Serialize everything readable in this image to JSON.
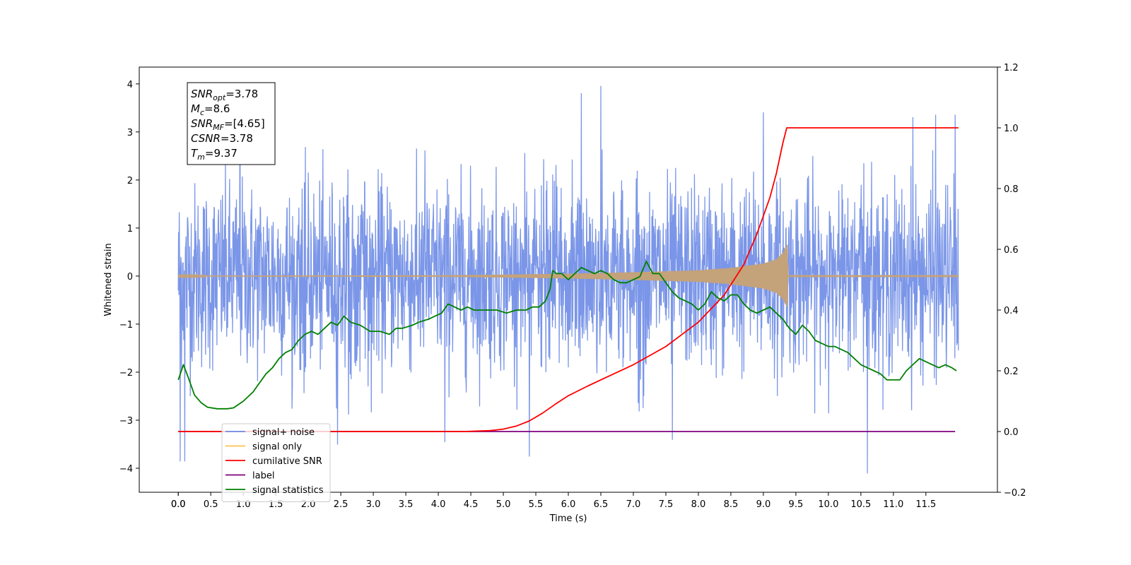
{
  "chart_data": {
    "type": "line",
    "xlabel": "Time (s)",
    "ylabel_left": "Whitened strain",
    "ylabel_right": "",
    "xlim": [
      -0.6,
      12.6
    ],
    "ylim_left": [
      -4.5,
      4.35
    ],
    "ylim_right": [
      -0.2,
      1.2
    ],
    "x_ticks": [
      "0.0",
      "0.0",
      "0.5",
      "1.0",
      "1.5",
      "2.0",
      "2.5",
      "3.0",
      "3.5",
      "4.0",
      "4.5",
      "5.0",
      "5.5",
      "6.0",
      "6.5",
      "7.0",
      "7.5",
      "8.0",
      "8.5",
      "9.0",
      "9.5",
      "10.0",
      "10.5",
      "11.0",
      "11.5"
    ],
    "x_tick_values": [
      0.0,
      0.0,
      0.5,
      1.0,
      1.5,
      2.0,
      2.5,
      3.0,
      3.5,
      4.0,
      4.5,
      5.0,
      5.5,
      6.0,
      6.5,
      7.0,
      7.5,
      8.0,
      8.5,
      9.0,
      9.5,
      10.0,
      10.5,
      11.0,
      11.5
    ],
    "y_ticks_left": [
      4,
      3,
      2,
      1,
      0,
      -1,
      -2,
      -3,
      -4
    ],
    "y_ticks_left_labels": [
      "4",
      "3",
      "2",
      "1",
      "0",
      "−1",
      "−2",
      "−3",
      "−4"
    ],
    "y_ticks_right": [
      1.2,
      1.0,
      0.8,
      0.6,
      0.4,
      0.2,
      0.0,
      -0.2
    ],
    "y_ticks_right_labels": [
      "1.2",
      "1.0",
      "0.8",
      "0.6",
      "0.4",
      "0.2",
      "0.0",
      "−0.2"
    ],
    "series": [
      {
        "name": "signal+ noise",
        "color": "#7b96e8",
        "axis": "left",
        "x_range": [
          0.0,
          12.0
        ],
        "std": 0.95,
        "peaks": [
          [
            0.03,
            -3.85
          ],
          [
            0.1,
            -3.85
          ],
          [
            0.95,
            3.8
          ],
          [
            2.45,
            -3.5
          ],
          [
            4.1,
            -3.45
          ],
          [
            5.4,
            3.7
          ],
          [
            5.4,
            -3.75
          ],
          [
            6.2,
            3.8
          ],
          [
            6.5,
            3.95
          ],
          [
            7.6,
            -3.4
          ],
          [
            9.0,
            3.4
          ],
          [
            10.6,
            -4.1
          ],
          [
            11.3,
            3.3
          ],
          [
            11.65,
            3.35
          ],
          [
            11.95,
            3.35
          ]
        ]
      },
      {
        "name": "signal only",
        "color": "#c4a27a",
        "legend_color": "#ffc04d",
        "axis": "left",
        "envelope": [
          [
            0.0,
            0.01
          ],
          [
            4.0,
            0.015
          ],
          [
            5.0,
            0.03
          ],
          [
            6.0,
            0.05
          ],
          [
            7.0,
            0.08
          ],
          [
            8.0,
            0.12
          ],
          [
            8.5,
            0.17
          ],
          [
            9.0,
            0.26
          ],
          [
            9.2,
            0.35
          ],
          [
            9.3,
            0.48
          ],
          [
            9.37,
            0.66
          ],
          [
            9.38,
            0.02
          ],
          [
            12.0,
            0.02
          ]
        ]
      },
      {
        "name": "cumilative SNR",
        "color": "#ff0000",
        "axis": "right",
        "points": [
          [
            0.0,
            0.0
          ],
          [
            4.4,
            0.0
          ],
          [
            4.8,
            0.003
          ],
          [
            5.0,
            0.008
          ],
          [
            5.2,
            0.018
          ],
          [
            5.4,
            0.035
          ],
          [
            5.6,
            0.06
          ],
          [
            5.8,
            0.09
          ],
          [
            6.0,
            0.118
          ],
          [
            6.3,
            0.15
          ],
          [
            6.6,
            0.18
          ],
          [
            7.0,
            0.22
          ],
          [
            7.5,
            0.28
          ],
          [
            8.0,
            0.36
          ],
          [
            8.4,
            0.45
          ],
          [
            8.7,
            0.55
          ],
          [
            8.9,
            0.65
          ],
          [
            9.1,
            0.77
          ],
          [
            9.2,
            0.85
          ],
          [
            9.3,
            0.95
          ],
          [
            9.36,
            1.0
          ],
          [
            12.0,
            1.0
          ]
        ]
      },
      {
        "name": "label",
        "color": "#7f007f",
        "axis": "right",
        "points": [
          [
            0.0,
            0.0
          ],
          [
            11.95,
            0.0
          ]
        ]
      },
      {
        "name": "signal statistics",
        "color": "#008000",
        "axis": "right",
        "points": [
          [
            0.0,
            0.17
          ],
          [
            0.08,
            0.22
          ],
          [
            0.15,
            0.18
          ],
          [
            0.25,
            0.12
          ],
          [
            0.35,
            0.095
          ],
          [
            0.45,
            0.08
          ],
          [
            0.6,
            0.075
          ],
          [
            0.75,
            0.075
          ],
          [
            0.85,
            0.078
          ],
          [
            1.0,
            0.1
          ],
          [
            1.15,
            0.13
          ],
          [
            1.25,
            0.16
          ],
          [
            1.35,
            0.19
          ],
          [
            1.45,
            0.21
          ],
          [
            1.55,
            0.24
          ],
          [
            1.65,
            0.26
          ],
          [
            1.75,
            0.27
          ],
          [
            1.85,
            0.3
          ],
          [
            1.95,
            0.32
          ],
          [
            2.05,
            0.33
          ],
          [
            2.15,
            0.32
          ],
          [
            2.25,
            0.34
          ],
          [
            2.35,
            0.36
          ],
          [
            2.45,
            0.35
          ],
          [
            2.55,
            0.38
          ],
          [
            2.65,
            0.36
          ],
          [
            2.8,
            0.35
          ],
          [
            2.95,
            0.33
          ],
          [
            3.1,
            0.33
          ],
          [
            3.25,
            0.32
          ],
          [
            3.35,
            0.34
          ],
          [
            3.45,
            0.34
          ],
          [
            3.6,
            0.35
          ],
          [
            3.7,
            0.36
          ],
          [
            3.85,
            0.37
          ],
          [
            3.95,
            0.38
          ],
          [
            4.05,
            0.39
          ],
          [
            4.15,
            0.42
          ],
          [
            4.25,
            0.41
          ],
          [
            4.35,
            0.4
          ],
          [
            4.45,
            0.41
          ],
          [
            4.55,
            0.4
          ],
          [
            4.7,
            0.4
          ],
          [
            4.9,
            0.4
          ],
          [
            5.05,
            0.39
          ],
          [
            5.2,
            0.4
          ],
          [
            5.35,
            0.4
          ],
          [
            5.45,
            0.41
          ],
          [
            5.55,
            0.41
          ],
          [
            5.65,
            0.43
          ],
          [
            5.72,
            0.47
          ],
          [
            5.76,
            0.53
          ],
          [
            5.82,
            0.52
          ],
          [
            5.9,
            0.52
          ],
          [
            6.0,
            0.5
          ],
          [
            6.1,
            0.52
          ],
          [
            6.2,
            0.54
          ],
          [
            6.3,
            0.53
          ],
          [
            6.4,
            0.52
          ],
          [
            6.5,
            0.53
          ],
          [
            6.6,
            0.52
          ],
          [
            6.7,
            0.5
          ],
          [
            6.8,
            0.49
          ],
          [
            6.9,
            0.49
          ],
          [
            7.0,
            0.5
          ],
          [
            7.1,
            0.51
          ],
          [
            7.2,
            0.56
          ],
          [
            7.3,
            0.52
          ],
          [
            7.4,
            0.52
          ],
          [
            7.5,
            0.49
          ],
          [
            7.6,
            0.46
          ],
          [
            7.7,
            0.44
          ],
          [
            7.8,
            0.43
          ],
          [
            7.9,
            0.42
          ],
          [
            8.0,
            0.4
          ],
          [
            8.1,
            0.42
          ],
          [
            8.2,
            0.46
          ],
          [
            8.3,
            0.44
          ],
          [
            8.4,
            0.43
          ],
          [
            8.5,
            0.45
          ],
          [
            8.6,
            0.45
          ],
          [
            8.7,
            0.42
          ],
          [
            8.8,
            0.4
          ],
          [
            8.9,
            0.39
          ],
          [
            9.0,
            0.4
          ],
          [
            9.1,
            0.41
          ],
          [
            9.2,
            0.39
          ],
          [
            9.3,
            0.37
          ],
          [
            9.4,
            0.34
          ],
          [
            9.5,
            0.32
          ],
          [
            9.6,
            0.35
          ],
          [
            9.7,
            0.33
          ],
          [
            9.8,
            0.3
          ],
          [
            9.9,
            0.29
          ],
          [
            10.0,
            0.28
          ],
          [
            10.1,
            0.28
          ],
          [
            10.2,
            0.27
          ],
          [
            10.3,
            0.26
          ],
          [
            10.4,
            0.24
          ],
          [
            10.5,
            0.22
          ],
          [
            10.6,
            0.21
          ],
          [
            10.7,
            0.2
          ],
          [
            10.8,
            0.19
          ],
          [
            10.9,
            0.17
          ],
          [
            11.0,
            0.17
          ],
          [
            11.1,
            0.17
          ],
          [
            11.2,
            0.2
          ],
          [
            11.3,
            0.22
          ],
          [
            11.4,
            0.24
          ],
          [
            11.5,
            0.23
          ],
          [
            11.6,
            0.22
          ],
          [
            11.7,
            0.21
          ],
          [
            11.8,
            0.22
          ],
          [
            11.9,
            0.21
          ],
          [
            11.97,
            0.2
          ]
        ]
      }
    ],
    "legend": {
      "position": "lower-left",
      "entries": [
        {
          "label": "signal+ noise",
          "color": "#6f8ae6"
        },
        {
          "label": "signal only",
          "color": "#ffc04d"
        },
        {
          "label": "cumilative SNR",
          "color": "#ff0000"
        },
        {
          "label": "label",
          "color": "#7f007f"
        },
        {
          "label": "signal statistics",
          "color": "#008000"
        }
      ]
    },
    "info_box": {
      "position": "top-left",
      "lines": [
        {
          "sym": "SNR",
          "sub": "opt",
          "value": "=3.78"
        },
        {
          "sym": "M",
          "sub": "c",
          "value": "=8.6"
        },
        {
          "sym": "SNR",
          "sub": "MF",
          "value": "=[4.65]"
        },
        {
          "sym": "CSNR",
          "sub": "",
          "value": "=3.78"
        },
        {
          "sym": "T",
          "sub": "m",
          "value": "=9.37"
        }
      ]
    },
    "grid": false
  }
}
